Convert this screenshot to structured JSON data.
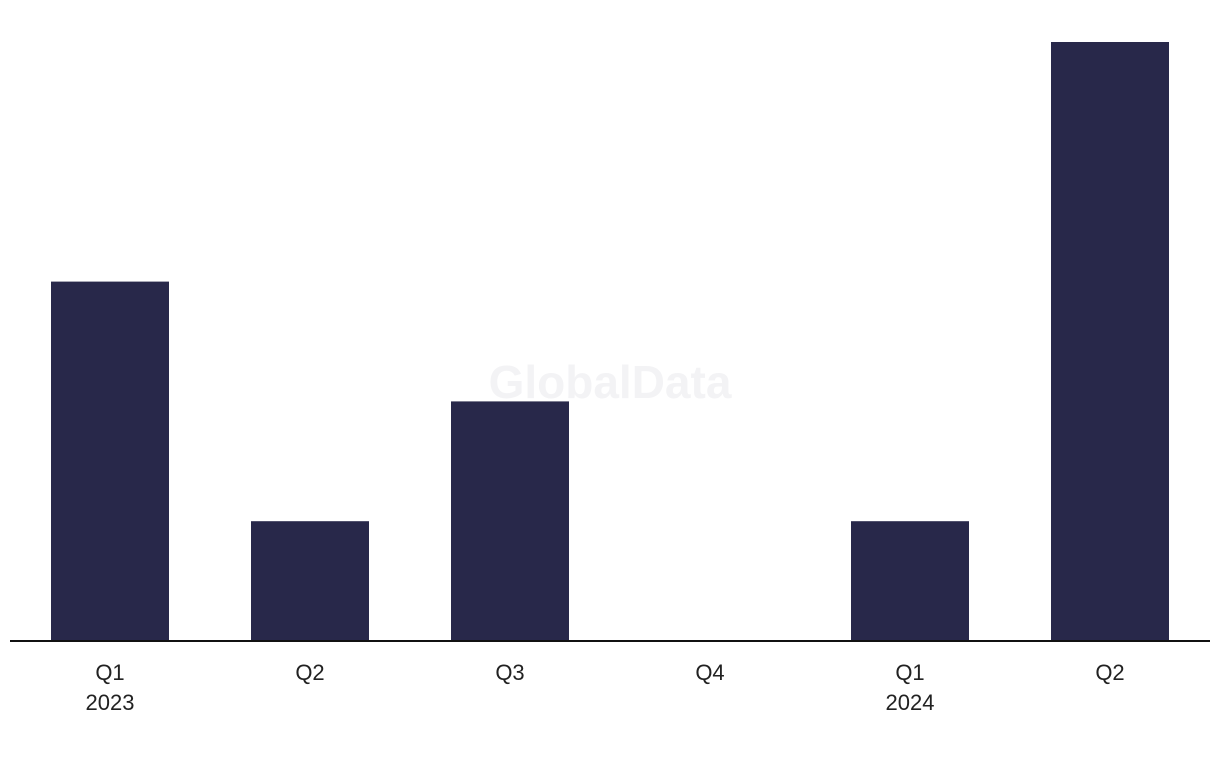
{
  "chart_data": {
    "type": "bar",
    "watermark": "GlobalData",
    "categories": [
      "Q1",
      "Q2",
      "Q3",
      "Q4",
      "Q1",
      "Q2"
    ],
    "category_years": [
      "2023",
      null,
      null,
      null,
      "2024",
      null
    ],
    "values": [
      3,
      1,
      2,
      0,
      1,
      5
    ],
    "color": "#28284a"
  }
}
